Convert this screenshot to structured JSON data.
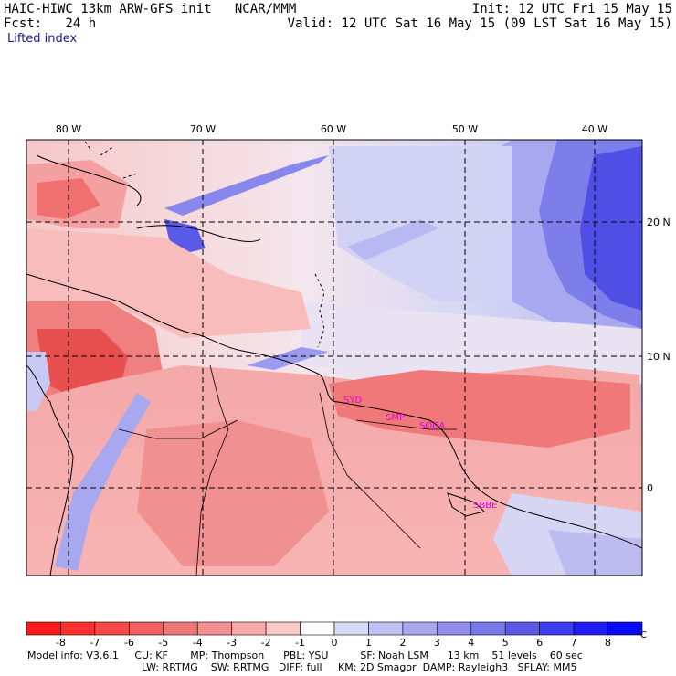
{
  "header": {
    "title": "HAIC-HIWC 13km ARW-GFS init   NCAR/MMM",
    "fcst": "Fcst:   24 h",
    "field": "Lifted index",
    "init": "Init: 12 UTC Fri 15 May 15",
    "valid": "Valid: 12 UTC Sat 16 May 15 (09 LST Sat 16 May 15)"
  },
  "map": {
    "lon_labels": [
      "80 W",
      "70 W",
      "60 W",
      "50 W",
      "40 W"
    ],
    "lat_labels": [
      "20 N",
      "10 N",
      "0"
    ],
    "stations": [
      "SYD",
      "SMP",
      "SOCA",
      "SBBE"
    ]
  },
  "colorbar": {
    "ticks": [
      "-8",
      "-7",
      "-6",
      "-5",
      "-4",
      "-3",
      "-2",
      "-1",
      "0",
      "1",
      "2",
      "3",
      "4",
      "5",
      "6",
      "7",
      "8"
    ],
    "unit": "°C",
    "colors": [
      "#ff1a1a",
      "#ff3030",
      "#f84848",
      "#f06060",
      "#f07878",
      "#f49090",
      "#f8a8a8",
      "#fcc8c8",
      "#ffffff",
      "#d8d8f8",
      "#c0c0f4",
      "#a8a8f0",
      "#9090ec",
      "#7878e8",
      "#5a5ae8",
      "#3c3cf0",
      "#1e1ef4",
      "#0a0af8"
    ]
  },
  "model_info": {
    "line1": "Model info: V3.6.1     CU: KF       MP: Thompson      PBL: YSU          SF: Noah LSM      13 km    51 levels    60 sec",
    "line2": "LW: RRTMG    SW: RRTMG   DIFF: full     KM: 2D Smagor  DAMP: Rayleigh3   SFLAY: MM5"
  }
}
